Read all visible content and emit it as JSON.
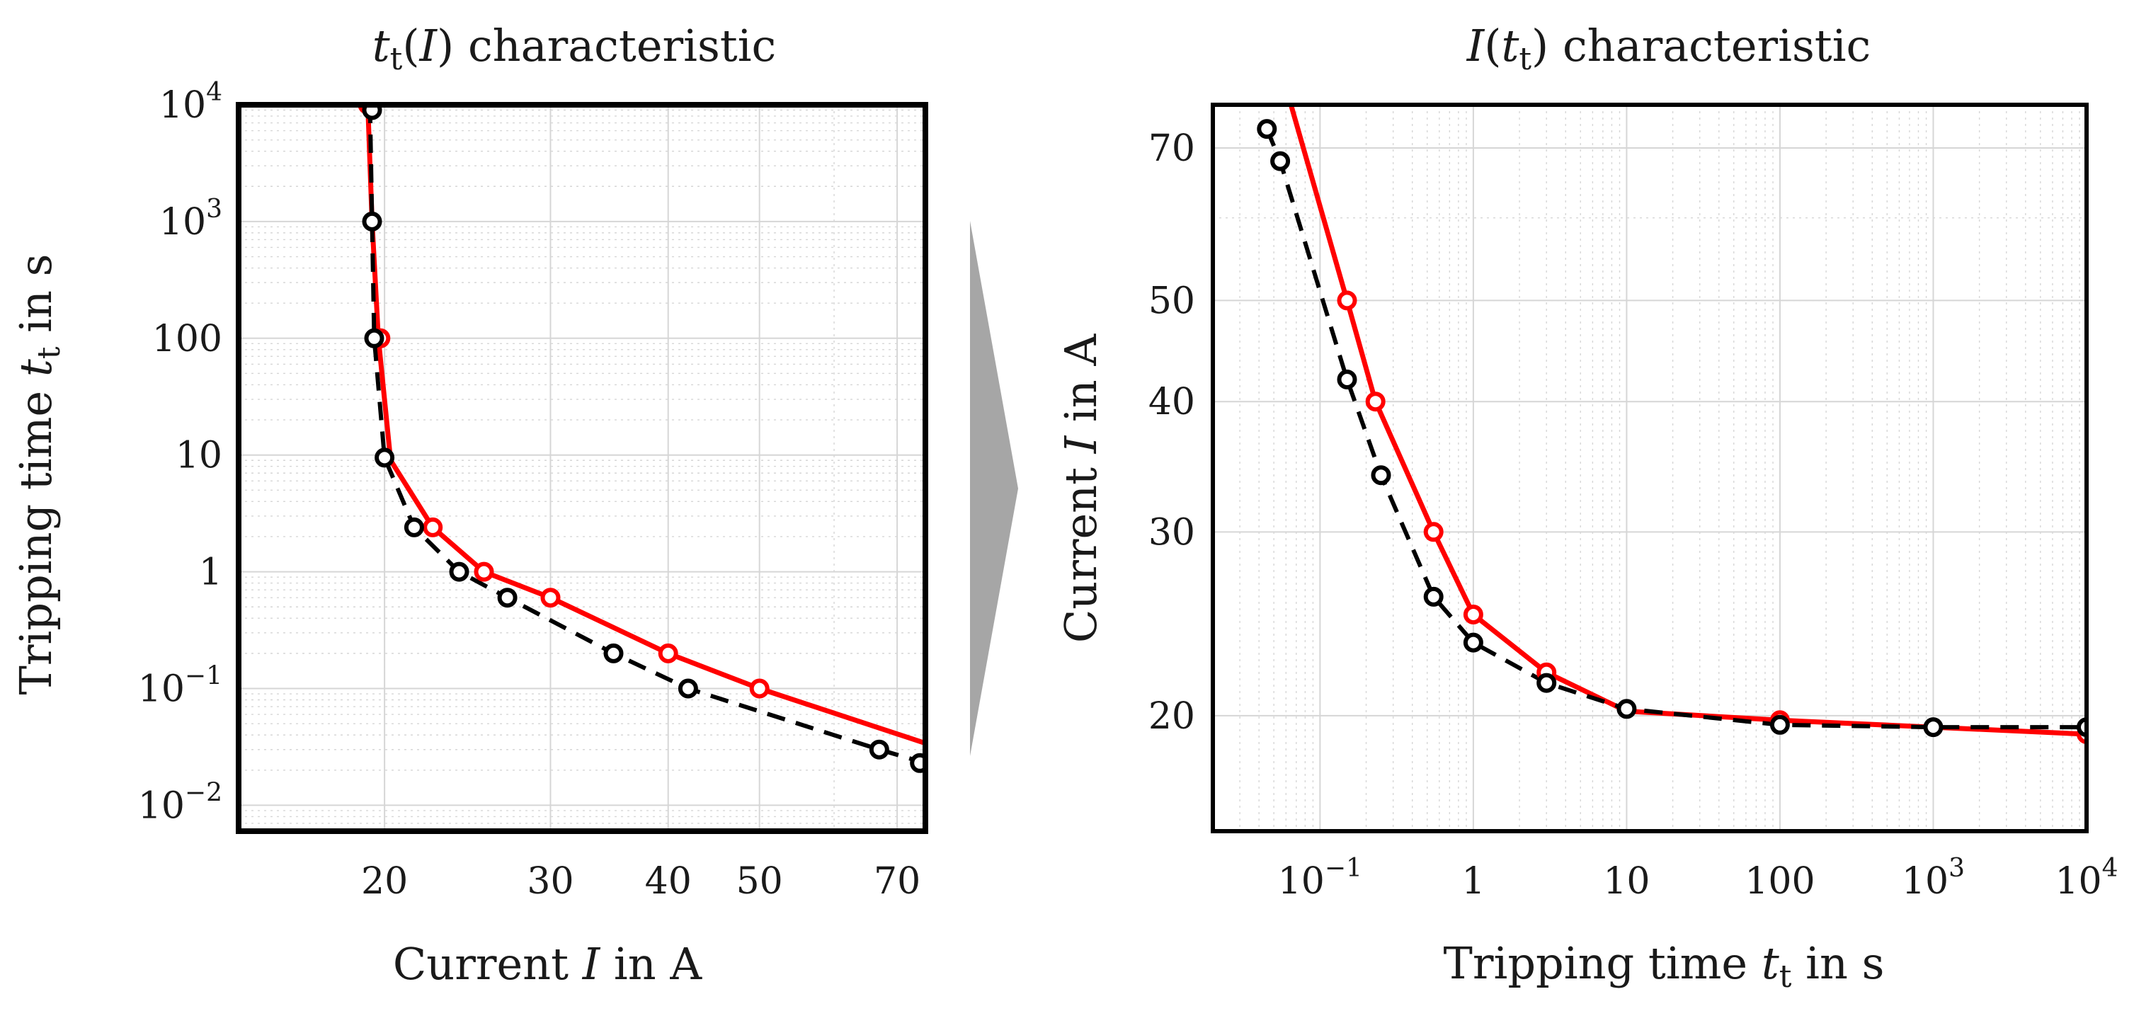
{
  "colors": {
    "curve_red": "#ff0000",
    "curve_black": "#000000",
    "grid": "#d6d6d6",
    "arrow": "#a6a6a6",
    "frame": "#000000"
  },
  "arrow": {
    "icon": "transition-arrow-icon"
  },
  "chart_data": [
    {
      "type": "line",
      "title": {
        "var": "t",
        "sub": "t",
        "arg_open": "(",
        "arg": "I",
        "arg_close": ")",
        "rest": " characteristic"
      },
      "xlabel": {
        "prefix": "Current ",
        "var": "I",
        "suffix": " in A"
      },
      "ylabel": {
        "prefix": "Tripping time ",
        "var": "t",
        "sub": "t",
        "suffix": " in s"
      },
      "xscale": "log",
      "yscale": "log",
      "xlim": [
        14,
        75
      ],
      "ylim": [
        0.006,
        10000
      ],
      "xticks": [
        {
          "v": 20,
          "label": "20"
        },
        {
          "v": 30,
          "label": "30"
        },
        {
          "v": 40,
          "label": "40"
        },
        {
          "v": 50,
          "label": "50"
        },
        {
          "v": 70,
          "label": "70"
        }
      ],
      "yticks": [
        {
          "v": 10000,
          "base": "10",
          "exp": "4"
        },
        {
          "v": 1000,
          "base": "10",
          "exp": "3"
        },
        {
          "v": 100,
          "base": "100",
          "exp": ""
        },
        {
          "v": 10,
          "base": "10",
          "exp": ""
        },
        {
          "v": 1,
          "base": "1",
          "exp": ""
        },
        {
          "v": 0.1,
          "base": "10",
          "exp": "−1"
        },
        {
          "v": 0.01,
          "base": "10",
          "exp": "−2"
        }
      ],
      "series": [
        {
          "name": "red",
          "line": {
            "x": [
              19.2,
              19.4,
              19.7,
              20.3,
              22.5,
              25.5,
              30,
              40,
              50,
              75
            ],
            "y": [
              10000,
              1000,
              100,
              9,
              2.4,
              1,
              0.6,
              0.2,
              0.1,
              0.034
            ]
          },
          "markers": {
            "x": [
              19.2,
              19.8,
              22.5,
              25.5,
              30,
              40,
              50
            ],
            "y": [
              10000,
              100,
              2.4,
              1,
              0.6,
              0.2,
              0.1
            ]
          }
        },
        {
          "name": "black",
          "line": {
            "x": [
              19.3,
              19.4,
              19.5,
              20,
              21.5,
              24,
              27,
              35,
              42,
              67,
              75
            ],
            "y": [
              10000,
              1000,
              100,
              9.5,
              2.4,
              1,
              0.6,
              0.2,
              0.1,
              0.03,
              0.023
            ]
          },
          "markers": {
            "x": [
              19.4,
              19.4,
              19.5,
              20,
              21.5,
              24,
              27,
              35,
              42,
              67,
              74
            ],
            "y": [
              9000,
              1000,
              100,
              9.5,
              2.4,
              1,
              0.6,
              0.2,
              0.1,
              0.03,
              0.023
            ]
          }
        }
      ]
    },
    {
      "type": "line",
      "title": {
        "var": "I",
        "arg_open": "(",
        "arg": "t",
        "arg_sub": "t",
        "arg_close": ")",
        "rest": " characteristic"
      },
      "xlabel": {
        "prefix": "Tripping time ",
        "var": "t",
        "sub": "t",
        "suffix": " in s"
      },
      "ylabel": {
        "prefix": "Current ",
        "var": "I",
        "suffix": " in A"
      },
      "xscale": "log",
      "yscale": "log",
      "xlim": [
        0.02,
        10000
      ],
      "ylim": [
        15.5,
        77
      ],
      "xticks": [
        {
          "v": 0.1,
          "base": "10",
          "exp": "−1"
        },
        {
          "v": 1,
          "base": "1",
          "exp": ""
        },
        {
          "v": 10,
          "base": "10",
          "exp": ""
        },
        {
          "v": 100,
          "base": "100",
          "exp": ""
        },
        {
          "v": 1000,
          "base": "10",
          "exp": "3"
        },
        {
          "v": 10000,
          "base": "10",
          "exp": "4"
        }
      ],
      "yticks": [
        {
          "v": 20,
          "label": "20"
        },
        {
          "v": 30,
          "label": "30"
        },
        {
          "v": 40,
          "label": "40"
        },
        {
          "v": 50,
          "label": "50"
        },
        {
          "v": 70,
          "label": "70"
        }
      ],
      "series": [
        {
          "name": "red",
          "line": {
            "x": [
              0.06,
              0.15,
              0.23,
              0.55,
              1,
              3,
              10,
              100,
              10000
            ],
            "y": [
              80,
              50,
              40,
              30,
              25,
              22,
              20.2,
              19.8,
              19.2
            ]
          },
          "markers": {
            "x": [
              0.15,
              0.23,
              0.55,
              1,
              3,
              100,
              10000
            ],
            "y": [
              50,
              40,
              30,
              25,
              22,
              19.8,
              19.2
            ]
          }
        },
        {
          "name": "black",
          "line": {
            "x": [
              0.045,
              0.055,
              0.15,
              0.25,
              0.55,
              1,
              3,
              10,
              100,
              1000,
              10000
            ],
            "y": [
              73,
              68,
              42,
              34,
              26,
              23.5,
              21.5,
              20.3,
              19.6,
              19.5,
              19.5
            ]
          },
          "markers": {
            "x": [
              0.045,
              0.055,
              0.15,
              0.25,
              0.55,
              1,
              3,
              10,
              100,
              1000,
              10000
            ],
            "y": [
              73,
              68,
              42,
              34,
              26,
              23.5,
              21.5,
              20.3,
              19.6,
              19.5,
              19.5
            ]
          }
        }
      ]
    }
  ]
}
